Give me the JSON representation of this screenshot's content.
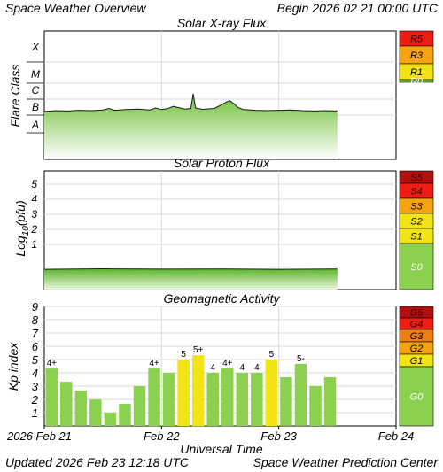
{
  "header": {
    "left": "Space Weather Overview",
    "right": "Begin 2026 02 21 00:00 UTC"
  },
  "footer": {
    "left": "Updated 2026 Feb 23 12:18 UTC",
    "right": "Space Weather Prediction Center"
  },
  "colors": {
    "green": "#8bd04e",
    "yellow": "#f2e314",
    "orange": "#f5a30f",
    "dark_orange": "#f07d10",
    "red": "#ee1d14",
    "dark_red": "#b40f0f",
    "grid": "#d9d9d9",
    "frame": "#000000"
  },
  "chart_data": [
    {
      "type": "area",
      "title": "Solar X-ray Flux",
      "ylabel": "Flare Class",
      "y_scale": "log",
      "yticklabels": [
        "A",
        "B",
        "C",
        "M",
        "X"
      ],
      "xlabel": "",
      "xticklabels": [
        "2026 Feb 21",
        "Feb 22",
        "Feb 23",
        "Feb 24"
      ],
      "xlim_days": [
        0,
        3
      ],
      "grid": true,
      "series": [
        {
          "x_days": [
            0,
            0.1,
            0.2,
            0.3,
            0.4,
            0.5,
            0.55,
            0.6,
            0.7,
            0.8,
            0.9,
            0.95,
            1.0,
            1.05,
            1.1,
            1.2,
            1.25,
            1.27,
            1.29,
            1.35,
            1.45,
            1.5,
            1.55,
            1.58,
            1.62,
            1.65,
            1.7,
            1.8,
            1.9,
            2.0,
            2.1,
            2.2,
            2.3,
            2.4,
            2.5
          ],
          "y_class": [
            "B1.7",
            "B1.9",
            "B1.8",
            "B2.0",
            "B1.9",
            "B2.1",
            "B2.6",
            "B2.0",
            "B2.2",
            "B2.4",
            "B2.1",
            "B2.8",
            "B2.2",
            "B2.5",
            "B3.5",
            "B2.4",
            "B2.6",
            "C2.2",
            "B2.8",
            "B2.3",
            "B2.6",
            "B4.0",
            "B6.5",
            "B8.0",
            "B5.0",
            "B3.0",
            "B2.2",
            "B2.0",
            "B1.9",
            "B2.0",
            "B2.1",
            "B1.9",
            "B1.8",
            "B1.9",
            "B1.8"
          ]
        }
      ],
      "scale_labels": [
        "R5",
        "R3",
        "R1",
        "R0"
      ],
      "scale_colors": [
        "red",
        "orange",
        "yellow",
        "green"
      ]
    },
    {
      "type": "area",
      "title": "Solar Proton Flux",
      "ylabel": "Log10(pfu)",
      "ylabel_main": "Log",
      "ylabel_sub": "10",
      "ylabel_tail": "(pfu)",
      "ylim": [
        -1.5,
        5.8
      ],
      "yticklabels": [
        "1",
        "2",
        "3",
        "4",
        "5"
      ],
      "xticklabels": [
        "2026 Feb 21",
        "Feb 22",
        "Feb 23",
        "Feb 24"
      ],
      "xlim_days": [
        0,
        3
      ],
      "grid": true,
      "series": [
        {
          "x_days": [
            0,
            0.5,
            1.0,
            1.5,
            2.0,
            2.5
          ],
          "y": [
            -0.65,
            -0.62,
            -0.64,
            -0.63,
            -0.65,
            -0.63
          ]
        }
      ],
      "scale_labels": [
        "S5",
        "S4",
        "S3",
        "S2",
        "S1",
        "S0"
      ],
      "scale_colors": [
        "dark_red",
        "red",
        "orange",
        "yellow",
        "yellow",
        "green"
      ]
    },
    {
      "type": "bar",
      "title": "Geomagnetic Activity",
      "ylabel": "Kp index",
      "ylim": [
        0,
        9
      ],
      "yticklabels": [
        "1",
        "2",
        "3",
        "4",
        "5",
        "6",
        "7",
        "8",
        "9"
      ],
      "xlabel": "Universal Time",
      "xticklabels": [
        "2026 Feb 21",
        "Feb 22",
        "Feb 23",
        "Feb 24"
      ],
      "xlim_days": [
        0,
        3
      ],
      "grid": true,
      "bar_width_days": 0.125,
      "values": [
        4.33,
        3.33,
        2.67,
        2.0,
        1.0,
        1.67,
        3.0,
        4.33,
        4.0,
        5.0,
        5.33,
        4.0,
        4.33,
        4.0,
        4.0,
        5.0,
        3.67,
        4.67,
        3.0,
        3.67
      ],
      "bar_labels": [
        "4+",
        "",
        "",
        "",
        "",
        "",
        "",
        "4+",
        "",
        "5",
        "5+",
        "4",
        "4+",
        "4",
        "4",
        "5",
        "",
        "5-",
        "",
        ""
      ],
      "scale_labels": [
        "G5",
        "G4",
        "G3",
        "G2",
        "G1",
        "G0"
      ],
      "scale_colors": [
        "dark_red",
        "red",
        "dark_orange",
        "orange",
        "yellow",
        "green"
      ]
    }
  ]
}
